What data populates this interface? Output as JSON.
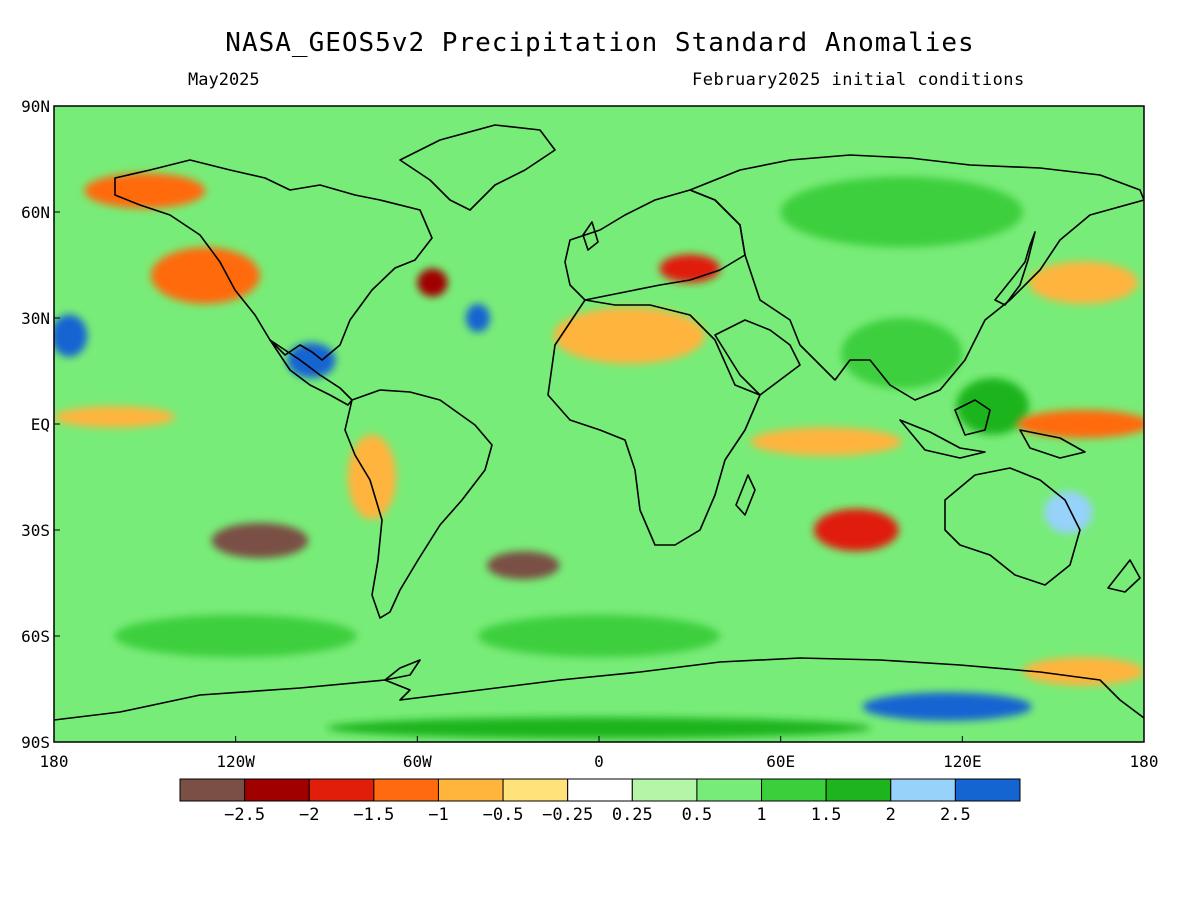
{
  "title": "NASA_GEOS5v2 Precipitation Standard Anomalies",
  "subtitle_left": "May2025",
  "subtitle_right": "February2025 initial conditions",
  "map": {
    "projection": "equirectangular",
    "lon_range": [
      -180,
      180
    ],
    "lat_range": [
      -90,
      90
    ],
    "lat_ticks": [
      "90N",
      "60N",
      "30N",
      "EQ",
      "30S",
      "60S",
      "90S"
    ],
    "lat_tick_values": [
      90,
      60,
      30,
      0,
      -30,
      -60,
      -90
    ],
    "lon_ticks": [
      "180",
      "120W",
      "60W",
      "0",
      "60E",
      "120E",
      "180"
    ],
    "lon_tick_values": [
      -180,
      -120,
      -60,
      0,
      60,
      120,
      180
    ],
    "dry_anomaly_areas": [
      {
        "lon": -112,
        "lat": -33,
        "rx": 16,
        "ry": 5,
        "level": -2.5
      },
      {
        "lon": -25,
        "lat": -40,
        "rx": 12,
        "ry": 4,
        "level": -2.5
      },
      {
        "lon": -55,
        "lat": 40,
        "rx": 5,
        "ry": 4,
        "level": -2
      },
      {
        "lon": 30,
        "lat": 44,
        "rx": 10,
        "ry": 4,
        "level": -1.5
      },
      {
        "lon": -130,
        "lat": 42,
        "rx": 18,
        "ry": 8,
        "level": -1
      },
      {
        "lon": -150,
        "lat": 66,
        "rx": 20,
        "ry": 5,
        "level": -1
      },
      {
        "lon": 160,
        "lat": 0,
        "rx": 22,
        "ry": 4,
        "level": -1
      },
      {
        "lon": -160,
        "lat": 2,
        "rx": 20,
        "ry": 3,
        "level": -0.5
      },
      {
        "lon": 75,
        "lat": -5,
        "rx": 25,
        "ry": 4,
        "level": -0.5
      },
      {
        "lon": 85,
        "lat": -30,
        "rx": 14,
        "ry": 6,
        "level": -1.5
      },
      {
        "lon": -75,
        "lat": -15,
        "rx": 8,
        "ry": 12,
        "level": -0.5
      },
      {
        "lon": 10,
        "lat": 25,
        "rx": 25,
        "ry": 8,
        "level": -0.5
      },
      {
        "lon": 160,
        "lat": 40,
        "rx": 18,
        "ry": 6,
        "level": -0.5
      },
      {
        "lon": 160,
        "lat": -70,
        "rx": 20,
        "ry": 4,
        "level": -0.5
      }
    ],
    "wet_anomaly_areas": [
      {
        "lon": -95,
        "lat": 18,
        "rx": 8,
        "ry": 5,
        "level": 2.5
      },
      {
        "lon": -175,
        "lat": 25,
        "rx": 6,
        "ry": 6,
        "level": 2.5
      },
      {
        "lon": 115,
        "lat": -80,
        "rx": 28,
        "ry": 4,
        "level": 2.5
      },
      {
        "lon": 155,
        "lat": -25,
        "rx": 8,
        "ry": 6,
        "level": 2
      },
      {
        "lon": -40,
        "lat": 30,
        "rx": 4,
        "ry": 4,
        "level": 2.5
      },
      {
        "lon": 100,
        "lat": 20,
        "rx": 20,
        "ry": 10,
        "level": 1
      },
      {
        "lon": 100,
        "lat": 60,
        "rx": 40,
        "ry": 10,
        "level": 1
      },
      {
        "lon": -40,
        "lat": -10,
        "rx": 15,
        "ry": 15,
        "level": 0.5
      },
      {
        "lon": 20,
        "lat": 5,
        "rx": 18,
        "ry": 10,
        "level": 0.5
      },
      {
        "lon": 0,
        "lat": -60,
        "rx": 40,
        "ry": 6,
        "level": 1
      },
      {
        "lon": -120,
        "lat": -60,
        "rx": 40,
        "ry": 6,
        "level": 1
      },
      {
        "lon": -100,
        "lat": 60,
        "rx": 25,
        "ry": 8,
        "level": 0.5
      },
      {
        "lon": 0,
        "lat": -86,
        "rx": 90,
        "ry": 3,
        "level": 1.5
      },
      {
        "lon": 130,
        "lat": 5,
        "rx": 12,
        "ry": 8,
        "level": 1.5
      }
    ]
  },
  "colorbar": {
    "colors": [
      "#7a4f45",
      "#a00000",
      "#e01e0a",
      "#ff6a10",
      "#ffb43c",
      "#ffe27a",
      "#ffffff",
      "#b4f5a8",
      "#78ec78",
      "#3ccf3c",
      "#1eb41e",
      "#96d2fa",
      "#1464d2"
    ],
    "labels": [
      "−2.5",
      "−2",
      "−1.5",
      "−1",
      "−0.5",
      "−0.25",
      "0.25",
      "0.5",
      "1",
      "1.5",
      "2",
      "2.5"
    ]
  },
  "colors": {
    "background": "#ffffff",
    "base_field": "#78ec78"
  }
}
